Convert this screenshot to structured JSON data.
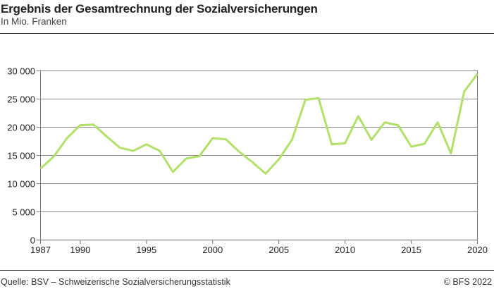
{
  "header": {
    "title": "Ergebnis der Gesamtrechnung der Sozialversicherungen",
    "subtitle": "In Mio. Franken"
  },
  "footer": {
    "source": "Quelle: BSV – Schweizerische Sozialversicherungsstatistik",
    "copyright": "© BFS 2022"
  },
  "chart_data": {
    "type": "line",
    "title": "Ergebnis der Gesamtrechnung der Sozialversicherungen",
    "subtitle": "In Mio. Franken",
    "xlabel": "",
    "ylabel": "",
    "xlim": [
      1987,
      2020
    ],
    "ylim": [
      0,
      30000
    ],
    "grid": true,
    "line_color": "#b3e06a",
    "x_ticks": [
      1987,
      1990,
      1995,
      2000,
      2005,
      2010,
      2015,
      2020
    ],
    "x_tick_labels": [
      "1987",
      "1990",
      "1995",
      "2000",
      "2005",
      "2010",
      "2015",
      "2020"
    ],
    "y_ticks": [
      0,
      5000,
      10000,
      15000,
      20000,
      25000,
      30000
    ],
    "y_tick_labels": [
      "0",
      "5 000",
      "10 000",
      "15 000",
      "20 000",
      "25 000",
      "30 000"
    ],
    "series": [
      {
        "x": [
          1987,
          1988,
          1989,
          1990,
          1991,
          1992,
          1993,
          1994,
          1995,
          1996,
          1997,
          1998,
          1999,
          2000,
          2001,
          2002,
          2003,
          2004,
          2005,
          2006,
          2007,
          2008,
          2009,
          2010,
          2011,
          2012,
          2013,
          2014,
          2015,
          2016,
          2017,
          2018,
          2019,
          2020
        ],
        "values": [
          12600,
          14750,
          18000,
          20300,
          20400,
          18300,
          16300,
          15750,
          16900,
          15750,
          12000,
          14400,
          14800,
          18000,
          17800,
          15600,
          13750,
          11700,
          14250,
          17750,
          24800,
          25100,
          16900,
          17100,
          21900,
          17700,
          20800,
          20300,
          16500,
          17000,
          20800,
          15300,
          26250,
          29400
        ]
      }
    ]
  }
}
